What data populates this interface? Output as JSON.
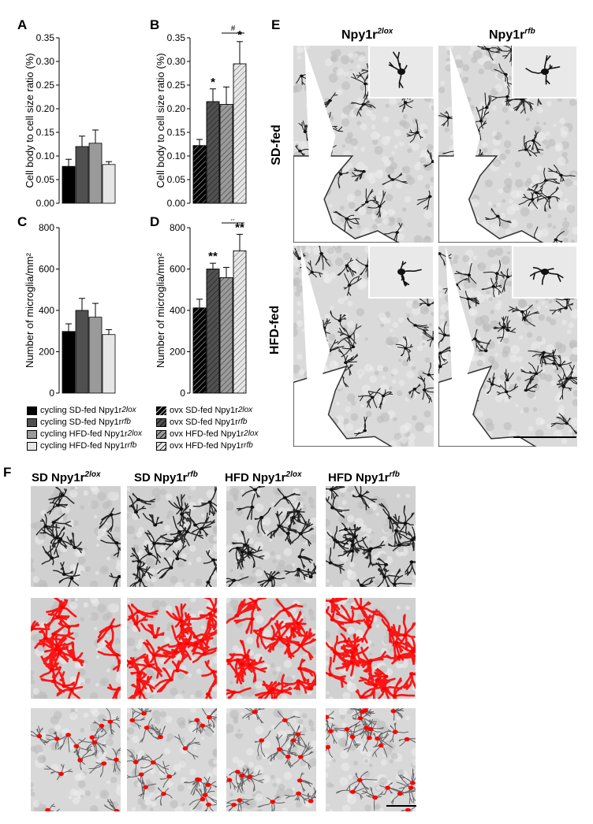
{
  "panel_labels": {
    "a": "A",
    "b": "B",
    "c": "C",
    "d": "D",
    "e": "E",
    "f": "F"
  },
  "colors": {
    "black": "#000000",
    "dark_grey": "#505050",
    "mid_grey": "#9a9a9a",
    "light_grey": "#dcdcdc",
    "red": "#ff0000",
    "tissue": "#d6d6d6"
  },
  "chart_data": [
    {
      "panel": "A",
      "type": "bar",
      "ylabel": "Cell body to cell size ratio (%)",
      "ylim": [
        0,
        0.35
      ],
      "yticks": [
        "0.00",
        "0.05",
        "0.10",
        "0.15",
        "0.20",
        "0.25",
        "0.30",
        "0.35"
      ],
      "values": [
        0.078,
        0.12,
        0.127,
        0.082
      ],
      "errors": [
        0.015,
        0.022,
        0.028,
        0.006
      ],
      "fills": [
        "#000000",
        "#505050",
        "#9a9a9a",
        "#e6e6e6"
      ],
      "hatched": false,
      "annotations": [
        "",
        "",
        "",
        ""
      ]
    },
    {
      "panel": "B",
      "type": "bar",
      "ylabel": "Cell body to cell size ratio (%)",
      "ylim": [
        0,
        0.35
      ],
      "yticks": [
        "0.00",
        "0.05",
        "0.10",
        "0.15",
        "0.20",
        "0.25",
        "0.30",
        "0.35"
      ],
      "values": [
        0.122,
        0.215,
        0.209,
        0.295
      ],
      "errors": [
        0.013,
        0.027,
        0.037,
        0.047
      ],
      "fills": [
        "#000000",
        "#505050",
        "#9a9a9a",
        "#e6e6e6"
      ],
      "hatched": true,
      "annotations": [
        "",
        "*",
        "",
        "*"
      ],
      "bracket": {
        "from": 2,
        "to": 3,
        "label": "#"
      }
    },
    {
      "panel": "C",
      "type": "bar",
      "ylabel": "Number of microglia/mm²",
      "ylim": [
        0,
        800
      ],
      "yticks": [
        "0",
        "200",
        "400",
        "600",
        "800"
      ],
      "values": [
        298,
        400,
        367,
        283
      ],
      "errors": [
        37,
        58,
        67,
        24
      ],
      "fills": [
        "#000000",
        "#505050",
        "#9a9a9a",
        "#e6e6e6"
      ],
      "hatched": false,
      "annotations": [
        "",
        "",
        "",
        ""
      ]
    },
    {
      "panel": "D",
      "type": "bar",
      "ylabel": "Number of microglia/mm²",
      "ylim": [
        0,
        800
      ],
      "yticks": [
        "0",
        "200",
        "400",
        "600",
        "800"
      ],
      "values": [
        412,
        600,
        558,
        688
      ],
      "errors": [
        42,
        28,
        50,
        80
      ],
      "fills": [
        "#000000",
        "#505050",
        "#9a9a9a",
        "#e6e6e6"
      ],
      "hatched": true,
      "annotations": [
        "",
        "**",
        "",
        "**"
      ],
      "bracket": {
        "from": 2,
        "to": 3,
        "label": "#"
      }
    }
  ],
  "legend": {
    "left": [
      {
        "prefix": "cycling SD-fed Npy1r",
        "sup": "2lox",
        "fill": "#000000",
        "hatched": false
      },
      {
        "prefix": "cycling SD-fed Npy1r",
        "sup": "rfb",
        "fill": "#505050",
        "hatched": false
      },
      {
        "prefix": "cycling HFD-fed Npy1r",
        "sup": "2lox",
        "fill": "#9a9a9a",
        "hatched": false
      },
      {
        "prefix": "cycling HFD-fed Npy1r",
        "sup": "rfb",
        "fill": "#e6e6e6",
        "hatched": false
      }
    ],
    "right": [
      {
        "prefix": "ovx SD-fed Npy1r ",
        "sup": "2lox",
        "fill": "#000000",
        "hatched": true
      },
      {
        "prefix": "ovx SD-fed Npy1r ",
        "sup": "rfb",
        "fill": "#505050",
        "hatched": true
      },
      {
        "prefix": "ovx HFD-fed Npy1r ",
        "sup": "2lox",
        "fill": "#9a9a9a",
        "hatched": true
      },
      {
        "prefix": "ovx HFD-fed Npy1r",
        "sup": "rfb",
        "fill": "#e6e6e6",
        "hatched": true
      }
    ]
  },
  "panel_e": {
    "col1": {
      "prefix": "Npy1r",
      "sup": "2lox"
    },
    "col2": {
      "prefix": "Npy1r",
      "sup": "rfb"
    },
    "row1": "SD-fed",
    "row2": "HFD-fed"
  },
  "panel_f": {
    "columns": [
      {
        "prefix": "SD Npy1r",
        "sup": "2lox"
      },
      {
        "prefix": "SD Npy1r",
        "sup": "rfb"
      },
      {
        "prefix": "HFD Npy1r",
        "sup": "2lox"
      },
      {
        "prefix": "HFD Npy1r",
        "sup": "rfb"
      }
    ]
  }
}
